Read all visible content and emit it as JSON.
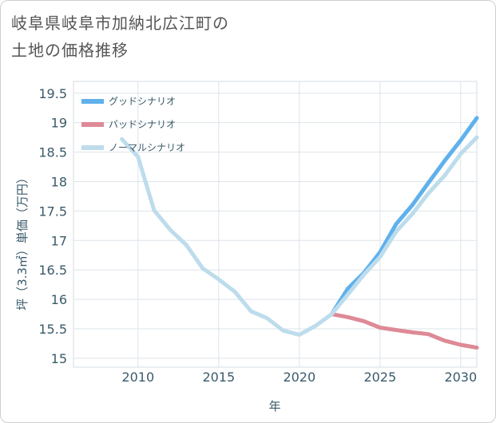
{
  "chart_data": {
    "type": "line",
    "title_lines": [
      "岐阜県岐阜市加納北広江町の",
      "土地の価格推移"
    ],
    "xlabel": "年",
    "ylabel": "坪（3.3㎡）単価（万円）",
    "xlim": [
      2006,
      2031
    ],
    "ylim": [
      14.85,
      19.7
    ],
    "xticks": [
      2010,
      2015,
      2020,
      2025,
      2030
    ],
    "yticks": [
      15,
      15.5,
      16,
      16.5,
      17,
      17.5,
      18,
      18.5,
      19,
      19.5
    ],
    "ytick_labels": [
      "15",
      "15.5",
      "16",
      "16.5",
      "17",
      "17.5",
      "18",
      "18.5",
      "19",
      "19.5"
    ],
    "grid": true,
    "legend_position": "top-left",
    "series": [
      {
        "name": "グッドシナリオ",
        "color": "#5fb1ec",
        "x": [
          2022,
          2023,
          2024,
          2025,
          2026,
          2027,
          2028,
          2029,
          2030,
          2031
        ],
        "y": [
          15.75,
          16.18,
          16.45,
          16.8,
          17.28,
          17.6,
          17.98,
          18.35,
          18.7,
          19.08
        ]
      },
      {
        "name": "バッドシナリオ",
        "color": "#de8a96",
        "x": [
          2022,
          2023,
          2024,
          2025,
          2026,
          2027,
          2028,
          2029,
          2030,
          2031
        ],
        "y": [
          15.75,
          15.7,
          15.63,
          15.52,
          15.48,
          15.44,
          15.41,
          15.3,
          15.23,
          15.18
        ]
      },
      {
        "name": "ノーマルシナリオ",
        "color": "#bddcec",
        "x": [
          2009,
          2010,
          2011,
          2012,
          2013,
          2014,
          2015,
          2016,
          2017,
          2018,
          2019,
          2020,
          2021,
          2022,
          2023,
          2024,
          2025,
          2026,
          2027,
          2028,
          2029,
          2030,
          2031
        ],
        "y": [
          18.72,
          18.42,
          17.51,
          17.18,
          16.92,
          16.53,
          16.34,
          16.13,
          15.8,
          15.68,
          15.47,
          15.4,
          15.55,
          15.75,
          16.08,
          16.42,
          16.72,
          17.15,
          17.45,
          17.8,
          18.1,
          18.47,
          18.75
        ]
      }
    ]
  }
}
